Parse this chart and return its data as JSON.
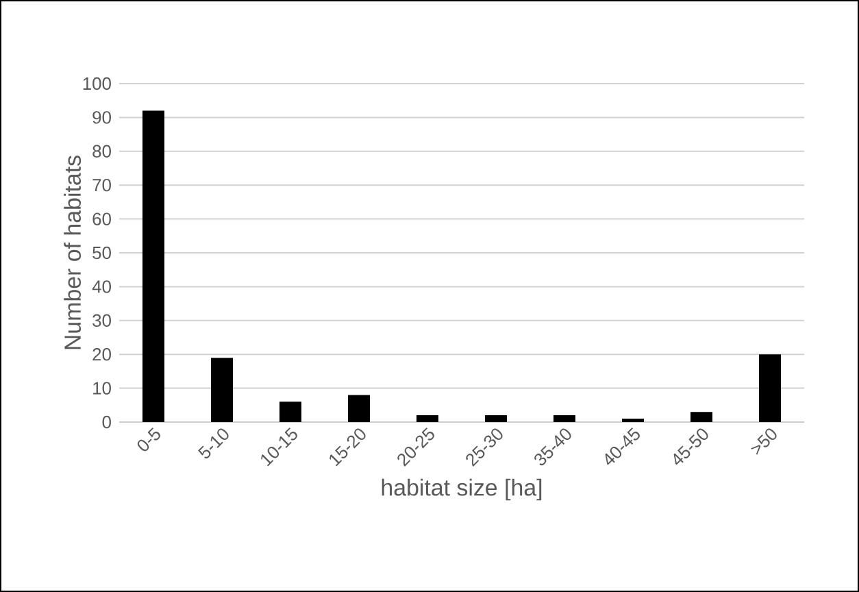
{
  "chart_data": {
    "type": "bar",
    "xlabel": "habitat size [ha]",
    "ylabel": "Number of habitats",
    "categories": [
      "0-5",
      "5-10",
      "10-15",
      "15-20",
      "20-25",
      "25-30",
      "35-40",
      "40-45",
      "45-50",
      ">50"
    ],
    "values": [
      92,
      19,
      6,
      8,
      2,
      2,
      2,
      1,
      3,
      20
    ],
    "color": "#000000",
    "ylim": [
      0,
      100
    ],
    "yticks": [
      0,
      10,
      20,
      30,
      40,
      50,
      60,
      70,
      80,
      90,
      100
    ],
    "grid": "y"
  }
}
